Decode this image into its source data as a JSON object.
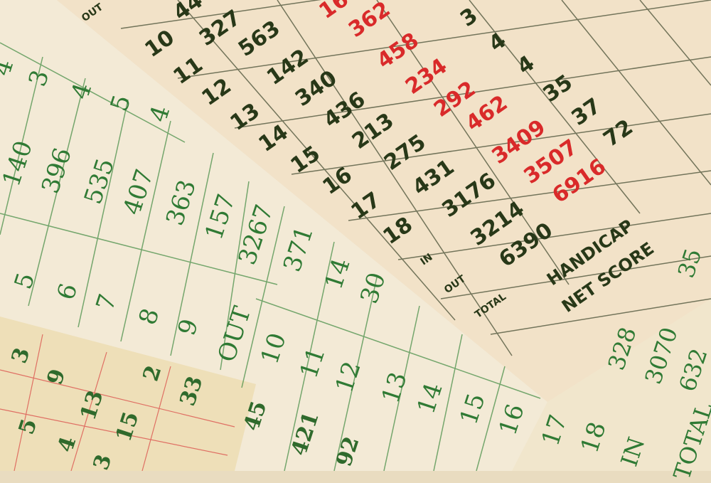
{
  "scene": "golf scorecards",
  "colors": {
    "card": "#f2e7cf",
    "green_ink": "#2f7a34",
    "dark_ink": "#283818",
    "red_ink": "#d92a2a"
  },
  "top_card": {
    "items": [
      "OUT",
      "44",
      "327",
      "16",
      "10",
      "563",
      "362",
      "3",
      "11",
      "142",
      "458",
      "4",
      "12",
      "340",
      "234",
      "4",
      "13",
      "436",
      "292",
      "35",
      "14",
      "213",
      "462",
      "37",
      "15",
      "275",
      "3409",
      "72",
      "16",
      "431",
      "3507",
      "17",
      "3176",
      "6916",
      "18",
      "3214",
      "IN",
      "6390",
      "OUT",
      "HANDICAP",
      "TOTAL",
      "NET SCORE"
    ]
  },
  "middle_card": {
    "items": [
      "4",
      "3",
      "4",
      "5",
      "4",
      "140",
      "396",
      "535",
      "407",
      "363",
      "157",
      "3267",
      "371",
      "14",
      "30",
      "5",
      "6",
      "7",
      "8",
      "9",
      "OUT",
      "10",
      "11",
      "12",
      "13",
      "14",
      "15",
      "16",
      "17",
      "18"
    ]
  },
  "bottom_card": {
    "items": [
      "3",
      "9",
      "13",
      "15",
      "2",
      "33",
      "5",
      "4",
      "3",
      "45",
      "421",
      "92"
    ]
  },
  "right_card": {
    "items": [
      "35",
      "3070",
      "632",
      "328",
      "TOTAL",
      "IN"
    ]
  }
}
